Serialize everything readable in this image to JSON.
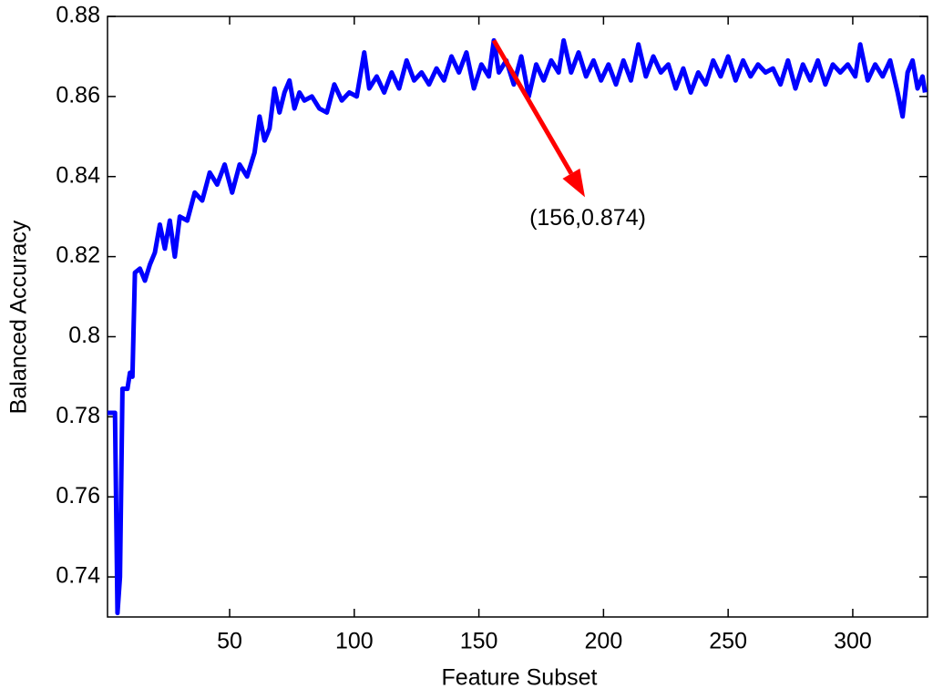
{
  "chart_data": {
    "type": "line",
    "xlabel": "Feature Subset",
    "ylabel": "Balanced Accuracy",
    "xlim": [
      1,
      330
    ],
    "ylim": [
      0.73,
      0.88
    ],
    "xticks": [
      50,
      100,
      150,
      200,
      250,
      300
    ],
    "yticks": [
      0.74,
      0.76,
      0.78,
      0.8,
      0.82,
      0.84,
      0.86,
      0.88
    ],
    "grid": false,
    "annotation": {
      "text": "(156,0.874)",
      "xy": [
        156,
        0.874
      ],
      "color": "#ff0000"
    },
    "series": [
      {
        "name": null,
        "color": "#0000ff",
        "x": [
          1,
          4,
          5,
          6,
          7,
          9,
          10,
          11,
          12,
          14,
          16,
          18,
          20,
          22,
          24,
          26,
          28,
          30,
          33,
          36,
          39,
          42,
          45,
          48,
          51,
          54,
          57,
          60,
          62,
          64,
          66,
          68,
          70,
          72,
          74,
          76,
          78,
          80,
          83,
          86,
          89,
          92,
          95,
          98,
          101,
          104,
          106,
          109,
          112,
          115,
          118,
          121,
          124,
          127,
          130,
          133,
          136,
          139,
          142,
          145,
          148,
          151,
          154,
          156,
          158,
          161,
          164,
          167,
          170,
          173,
          176,
          179,
          182,
          184,
          187,
          190,
          193,
          196,
          199,
          202,
          205,
          208,
          211,
          214,
          217,
          220,
          223,
          226,
          229,
          232,
          235,
          238,
          241,
          244,
          247,
          250,
          253,
          256,
          259,
          262,
          265,
          268,
          271,
          274,
          277,
          280,
          283,
          286,
          289,
          292,
          295,
          298,
          301,
          303,
          306,
          309,
          312,
          315,
          318,
          320,
          322,
          324,
          326,
          328,
          329
        ],
        "values": [
          0.781,
          0.781,
          0.731,
          0.74,
          0.787,
          0.787,
          0.791,
          0.79,
          0.816,
          0.817,
          0.814,
          0.818,
          0.821,
          0.828,
          0.822,
          0.829,
          0.82,
          0.83,
          0.829,
          0.836,
          0.834,
          0.841,
          0.838,
          0.843,
          0.836,
          0.843,
          0.84,
          0.846,
          0.855,
          0.849,
          0.852,
          0.862,
          0.856,
          0.861,
          0.864,
          0.857,
          0.861,
          0.859,
          0.86,
          0.857,
          0.856,
          0.863,
          0.859,
          0.861,
          0.86,
          0.871,
          0.862,
          0.865,
          0.861,
          0.866,
          0.862,
          0.869,
          0.864,
          0.866,
          0.863,
          0.867,
          0.864,
          0.87,
          0.866,
          0.871,
          0.862,
          0.868,
          0.865,
          0.874,
          0.866,
          0.869,
          0.863,
          0.87,
          0.86,
          0.868,
          0.864,
          0.869,
          0.866,
          0.874,
          0.866,
          0.871,
          0.865,
          0.869,
          0.864,
          0.868,
          0.863,
          0.869,
          0.864,
          0.873,
          0.865,
          0.87,
          0.866,
          0.868,
          0.862,
          0.867,
          0.861,
          0.866,
          0.863,
          0.869,
          0.865,
          0.87,
          0.864,
          0.869,
          0.865,
          0.868,
          0.866,
          0.867,
          0.863,
          0.869,
          0.862,
          0.868,
          0.864,
          0.869,
          0.863,
          0.868,
          0.866,
          0.868,
          0.865,
          0.873,
          0.864,
          0.868,
          0.865,
          0.869,
          0.861,
          0.855,
          0.866,
          0.869,
          0.862,
          0.865,
          0.861
        ]
      }
    ]
  }
}
